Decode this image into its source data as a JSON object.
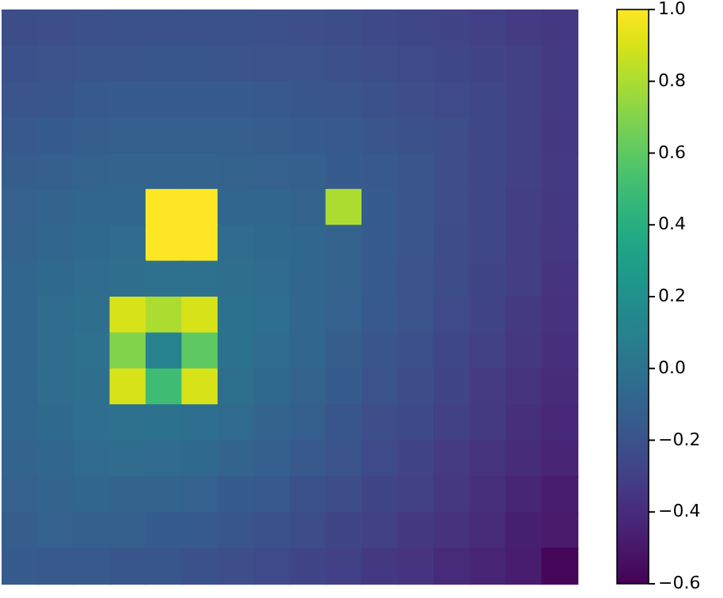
{
  "chart_data": {
    "type": "heatmap",
    "categories": [
      null,
      null,
      null,
      null,
      null,
      null,
      null,
      null,
      null,
      null,
      null,
      null,
      null,
      null,
      null,
      null
    ],
    "y_categories": [
      null,
      null,
      null,
      null,
      null,
      null,
      null,
      null,
      null,
      null,
      null,
      null,
      null,
      null,
      null,
      null
    ],
    "clim": [
      -0.6,
      1.0
    ],
    "cticks": [
      {
        "value": -0.6,
        "label": "−0.6"
      },
      {
        "value": -0.4,
        "label": "−0.4"
      },
      {
        "value": -0.2,
        "label": "−0.2"
      },
      {
        "value": 0,
        "label": "0.0"
      },
      0.2,
      0.4,
      0.6,
      0.8,
      {
        "value": 1,
        "label": "1.0"
      }
    ],
    "cells": [
      [
        -0.23,
        -0.22,
        -0.21,
        -0.2,
        -0.2,
        -0.2,
        -0.2,
        -0.21,
        -0.22,
        -0.23,
        -0.25,
        -0.26,
        -0.28,
        -0.3,
        -0.32,
        -0.34
      ],
      [
        -0.2,
        -0.19,
        -0.18,
        -0.18,
        -0.17,
        -0.17,
        -0.18,
        -0.19,
        -0.19,
        -0.21,
        -0.22,
        -0.24,
        -0.26,
        -0.28,
        -0.3,
        -0.33
      ],
      [
        -0.18,
        -0.17,
        -0.16,
        -0.15,
        -0.15,
        -0.15,
        -0.15,
        -0.16,
        -0.17,
        -0.18,
        -0.2,
        -0.22,
        -0.24,
        -0.26,
        -0.29,
        -0.33
      ],
      [
        -0.16,
        -0.14,
        -0.13,
        -0.12,
        -0.12,
        -0.12,
        -0.12,
        -0.13,
        -0.15,
        -0.16,
        -0.18,
        -0.2,
        -0.22,
        -0.26,
        -0.29,
        -0.34
      ],
      [
        -0.13,
        -0.12,
        -0.1,
        -0.09,
        -0.09,
        -0.09,
        -0.1,
        -0.11,
        -0.12,
        -0.14,
        -0.16,
        -0.18,
        -0.22,
        -0.26,
        -0.3,
        -0.33
      ],
      [
        -0.11,
        -0.09,
        -0.08,
        -0.07,
        1.0,
        1.0,
        -0.07,
        -0.08,
        -0.1,
        0.8,
        -0.14,
        -0.18,
        -0.22,
        -0.26,
        -0.31,
        -0.34
      ],
      [
        -0.1,
        -0.07,
        -0.06,
        -0.04,
        1.0,
        1.0,
        -0.04,
        -0.06,
        -0.08,
        -0.1,
        -0.15,
        -0.18,
        -0.23,
        -0.26,
        -0.31,
        -0.35
      ],
      [
        -0.08,
        -0.06,
        -0.04,
        -0.02,
        -0.01,
        -0.01,
        -0.02,
        -0.04,
        -0.07,
        -0.1,
        -0.15,
        -0.19,
        -0.23,
        -0.27,
        -0.31,
        -0.36
      ],
      [
        -0.07,
        -0.04,
        -0.02,
        0.9,
        0.8,
        0.9,
        0.0,
        -0.03,
        -0.07,
        -0.11,
        -0.16,
        -0.19,
        -0.24,
        -0.28,
        -0.33,
        -0.37
      ],
      [
        -0.07,
        -0.04,
        -0.01,
        0.7,
        0.1,
        0.6,
        0.0,
        -0.04,
        -0.08,
        -0.13,
        -0.18,
        -0.21,
        -0.26,
        -0.3,
        -0.35,
        -0.38
      ],
      [
        -0.07,
        -0.04,
        -0.02,
        0.9,
        0.5,
        0.9,
        -0.02,
        -0.06,
        -0.1,
        -0.14,
        -0.19,
        -0.23,
        -0.27,
        -0.32,
        -0.36,
        -0.4
      ],
      [
        -0.08,
        -0.06,
        -0.03,
        -0.01,
        0.0,
        -0.03,
        -0.05,
        -0.09,
        -0.12,
        -0.17,
        -0.22,
        -0.25,
        -0.3,
        -0.33,
        -0.38,
        -0.42
      ],
      [
        -0.09,
        -0.07,
        -0.05,
        -0.04,
        -0.05,
        -0.06,
        -0.09,
        -0.12,
        -0.16,
        -0.19,
        -0.24,
        -0.28,
        -0.32,
        -0.36,
        -0.4,
        -0.44
      ],
      [
        -0.11,
        -0.09,
        -0.08,
        -0.09,
        -0.09,
        -0.11,
        -0.14,
        -0.16,
        -0.2,
        -0.23,
        -0.27,
        -0.3,
        -0.35,
        -0.38,
        -0.43,
        -0.47
      ],
      [
        -0.13,
        -0.11,
        -0.12,
        -0.12,
        -0.14,
        -0.15,
        -0.17,
        -0.2,
        -0.23,
        -0.27,
        -0.3,
        -0.34,
        -0.37,
        -0.41,
        -0.46,
        -0.49
      ],
      [
        -0.15,
        -0.16,
        -0.16,
        -0.17,
        -0.17,
        -0.2,
        -0.22,
        -0.24,
        -0.27,
        -0.3,
        -0.34,
        -0.36,
        -0.41,
        -0.44,
        -0.48,
        -0.58
      ]
    ]
  }
}
